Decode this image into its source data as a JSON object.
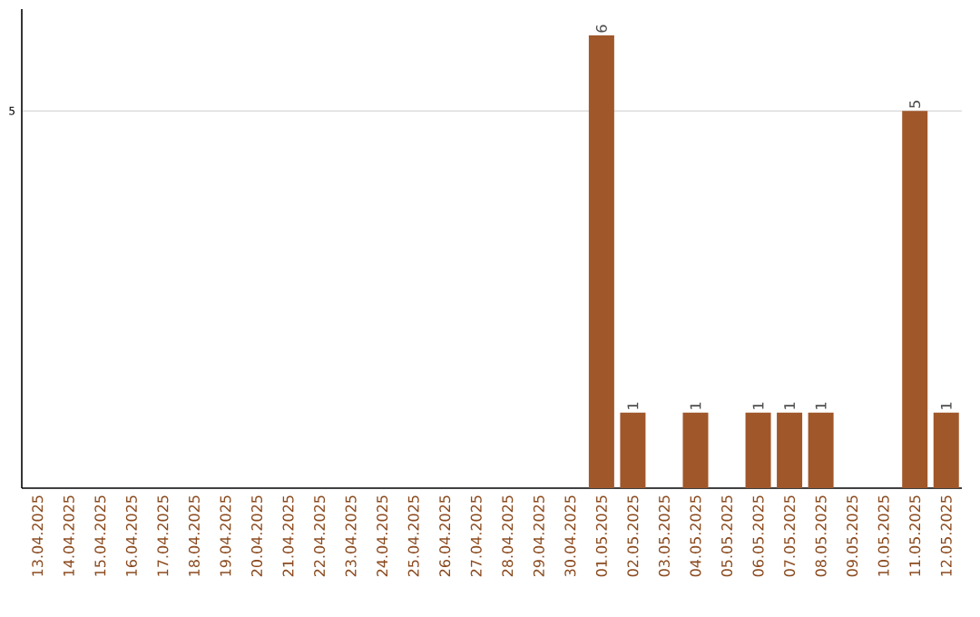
{
  "chart_data": {
    "type": "bar",
    "categories": [
      "13.04.2025",
      "14.04.2025",
      "15.04.2025",
      "16.04.2025",
      "17.04.2025",
      "18.04.2025",
      "19.04.2025",
      "20.04.2025",
      "21.04.2025",
      "22.04.2025",
      "23.04.2025",
      "24.04.2025",
      "25.04.2025",
      "26.04.2025",
      "27.04.2025",
      "28.04.2025",
      "29.04.2025",
      "30.04.2025",
      "01.05.2025",
      "02.05.2025",
      "03.05.2025",
      "04.05.2025",
      "05.05.2025",
      "06.05.2025",
      "07.05.2025",
      "08.05.2025",
      "09.05.2025",
      "10.05.2025",
      "11.05.2025",
      "12.05.2025"
    ],
    "values": [
      null,
      null,
      null,
      null,
      null,
      null,
      null,
      null,
      null,
      null,
      null,
      null,
      null,
      null,
      null,
      null,
      null,
      null,
      6,
      1,
      null,
      1,
      null,
      1,
      1,
      1,
      null,
      null,
      5,
      1
    ],
    "color": "#a0572a",
    "ylim": [
      0,
      6.35
    ],
    "yticks": [
      5
    ],
    "grid": "y",
    "data_labels": true
  }
}
